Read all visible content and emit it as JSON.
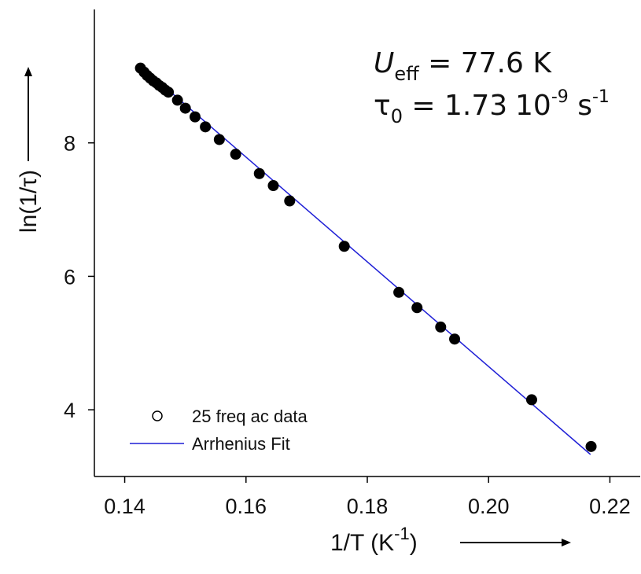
{
  "chart_data": {
    "type": "scatter",
    "xlabel": "1/T (K",
    "xlabel_sup": "-1",
    "xlabel_close": ")",
    "ylabel": "ln(1/τ)",
    "xlim": [
      0.135,
      0.225
    ],
    "ylim": [
      3.0,
      10.0
    ],
    "x_ticks": [
      0.14,
      0.16,
      0.18,
      0.2,
      0.22
    ],
    "x_tick_labels": [
      "0.14",
      "0.16",
      "0.18",
      "0.20",
      "0.22"
    ],
    "y_ticks": [
      4,
      6,
      8
    ],
    "y_tick_labels": [
      "4",
      "6",
      "8"
    ],
    "legend_position": "bottom-left",
    "series": [
      {
        "name": "25 freq ac data",
        "kind": "points",
        "color": "#000000",
        "x": [
          0.1426,
          0.1432,
          0.1437,
          0.1442,
          0.1447,
          0.1452,
          0.1457,
          0.1462,
          0.1467,
          0.1472,
          0.1487,
          0.15,
          0.1516,
          0.1533,
          0.1556,
          0.1583,
          0.1622,
          0.1645,
          0.1672,
          0.1762,
          0.1852,
          0.1882,
          0.1921,
          0.1944,
          0.2071,
          0.2169
        ],
        "y": [
          9.12,
          9.06,
          9.01,
          8.97,
          8.93,
          8.9,
          8.86,
          8.83,
          8.79,
          8.76,
          8.64,
          8.52,
          8.39,
          8.24,
          8.05,
          7.83,
          7.54,
          7.36,
          7.13,
          6.45,
          5.76,
          5.53,
          5.24,
          5.06,
          4.15,
          3.45
        ]
      },
      {
        "name": "Arrhenius Fit",
        "kind": "line",
        "color": "#1f1fd6",
        "x": [
          0.1425,
          0.2168
        ],
        "y": [
          9.16,
          3.33
        ]
      }
    ],
    "annotations": {
      "ueff_symbol": "U",
      "ueff_sub": "eff",
      "ueff_rest": " = 77.6 K",
      "tau_symbol": "τ",
      "tau_sub": "0",
      "tau_value": " = 1.73",
      "tau_exp_base": "10",
      "tau_exp_pow": "-9",
      "tau_unit": " s",
      "tau_unit_pow": "-1"
    }
  }
}
